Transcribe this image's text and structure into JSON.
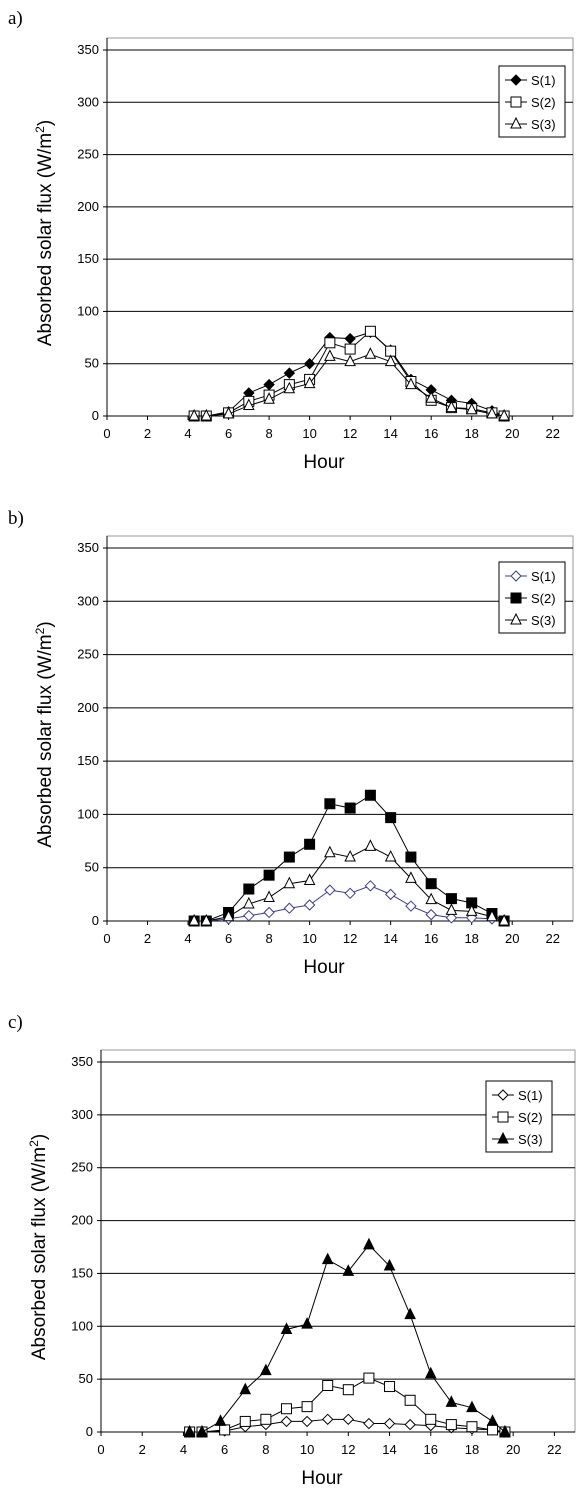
{
  "chart_data": [
    {
      "type": "line",
      "panel_label": "a)",
      "xlabel": "Hour",
      "ylabel": "Absorbed solar flux (W/m",
      "ylabel_sup": "2",
      "ylabel_end": ")",
      "xlim": [
        0,
        23
      ],
      "ylim": [
        0,
        350
      ],
      "xticks": [
        "0",
        "2",
        "4",
        "6",
        "8",
        "10",
        "12",
        "14",
        "16",
        "18",
        "20",
        "22"
      ],
      "yticks": [
        "0",
        "50",
        "100",
        "150",
        "200",
        "250",
        "300",
        "350"
      ],
      "grid": "horizontal",
      "legend_position": "top-right",
      "series": [
        {
          "name": "S(1)",
          "marker": "diamond-filled",
          "color": "#000000",
          "x": [
            4.3,
            4.9,
            6,
            7,
            8,
            9,
            10,
            11,
            12,
            13,
            14,
            15,
            16,
            17,
            18,
            19,
            19.6
          ],
          "y": [
            0,
            0,
            4,
            22,
            30,
            41,
            50,
            75,
            74,
            80,
            63,
            35,
            25,
            15,
            12,
            5,
            0
          ]
        },
        {
          "name": "S(2)",
          "marker": "square-open",
          "color": "#000000",
          "x": [
            4.3,
            4.9,
            6,
            7,
            8,
            9,
            10,
            11,
            12,
            13,
            14,
            15,
            16,
            17,
            18,
            19,
            19.6
          ],
          "y": [
            0,
            0,
            3,
            14,
            20,
            30,
            35,
            70,
            64,
            81,
            62,
            33,
            15,
            8,
            7,
            3,
            0
          ]
        },
        {
          "name": "S(3)",
          "marker": "triangle-open",
          "color": "#000000",
          "x": [
            4.3,
            4.9,
            6,
            7,
            8,
            9,
            10,
            11,
            12,
            13,
            14,
            15,
            16,
            17,
            18,
            19,
            19.6
          ],
          "y": [
            0,
            0,
            2,
            10,
            16,
            26,
            31,
            57,
            52,
            59,
            52,
            30,
            17,
            8,
            6,
            2,
            0
          ]
        }
      ]
    },
    {
      "type": "line",
      "panel_label": "b)",
      "xlabel": "Hour",
      "ylabel": "Absorbed solar flux (W/m",
      "ylabel_sup": "2",
      "ylabel_end": ")",
      "xlim": [
        0,
        23
      ],
      "ylim": [
        0,
        350
      ],
      "xticks": [
        "0",
        "2",
        "4",
        "6",
        "8",
        "10",
        "12",
        "14",
        "16",
        "18",
        "20",
        "22"
      ],
      "yticks": [
        "0",
        "50",
        "100",
        "150",
        "200",
        "250",
        "300",
        "350"
      ],
      "grid": "horizontal",
      "legend_position": "top-right",
      "series": [
        {
          "name": "S(1)",
          "marker": "diamond-open",
          "color": "#3a3a9a",
          "x": [
            4.3,
            4.9,
            6,
            7,
            8,
            9,
            10,
            11,
            12,
            13,
            14,
            15,
            16,
            17,
            18,
            19,
            19.6
          ],
          "y": [
            0,
            0,
            2,
            5,
            8,
            12,
            15,
            29,
            26,
            33,
            25,
            14,
            6,
            3,
            3,
            2,
            0
          ]
        },
        {
          "name": "S(2)",
          "marker": "square-filled",
          "color": "#000000",
          "x": [
            4.3,
            4.9,
            6,
            7,
            8,
            9,
            10,
            11,
            12,
            13,
            14,
            15,
            16,
            17,
            18,
            19,
            19.6
          ],
          "y": [
            0,
            0,
            8,
            30,
            43,
            60,
            72,
            110,
            106,
            118,
            97,
            60,
            35,
            21,
            17,
            7,
            0
          ]
        },
        {
          "name": "S(3)",
          "marker": "triangle-open",
          "color": "#000000",
          "x": [
            4.3,
            4.9,
            6,
            7,
            8,
            9,
            10,
            11,
            12,
            13,
            14,
            15,
            16,
            17,
            18,
            19,
            19.6
          ],
          "y": [
            0,
            0,
            4,
            16,
            22,
            35,
            38,
            64,
            60,
            70,
            60,
            40,
            20,
            10,
            9,
            4,
            0
          ]
        }
      ]
    },
    {
      "type": "line",
      "panel_label": "c)",
      "xlabel": "Hour",
      "ylabel": "Absorbed solar flux (W/m",
      "ylabel_sup": "2",
      "ylabel_end": ")",
      "xlim": [
        0,
        23
      ],
      "ylim": [
        0,
        350
      ],
      "xticks": [
        "0",
        "2",
        "4",
        "6",
        "8",
        "10",
        "12",
        "14",
        "16",
        "18",
        "20",
        "22"
      ],
      "yticks": [
        "0",
        "50",
        "100",
        "150",
        "200",
        "250",
        "300",
        "350"
      ],
      "grid": "horizontal",
      "legend_position": "top-right",
      "series": [
        {
          "name": "S(1)",
          "marker": "diamond-open",
          "color": "#000000",
          "x": [
            4.3,
            4.9,
            6,
            7,
            8,
            9,
            10,
            11,
            12,
            13,
            14,
            15,
            16,
            17,
            18,
            19,
            19.6
          ],
          "y": [
            0,
            0,
            1,
            5,
            7,
            10,
            10,
            12,
            12,
            8,
            8,
            7,
            6,
            4,
            3,
            2,
            0
          ]
        },
        {
          "name": "S(2)",
          "marker": "square-open",
          "color": "#000000",
          "x": [
            4.3,
            4.9,
            6,
            7,
            8,
            9,
            10,
            11,
            12,
            13,
            14,
            15,
            16,
            17,
            18,
            19,
            19.6
          ],
          "y": [
            0,
            0,
            2,
            10,
            12,
            22,
            24,
            44,
            40,
            51,
            43,
            30,
            12,
            7,
            5,
            2,
            0
          ]
        },
        {
          "name": "S(3)",
          "marker": "triangle-filled",
          "color": "#000000",
          "x": [
            4.3,
            4.9,
            5.8,
            7,
            8,
            9,
            10,
            11,
            12,
            13,
            14,
            15,
            16,
            17,
            18,
            19,
            19.6
          ],
          "y": [
            0,
            0,
            10,
            40,
            58,
            97,
            102,
            163,
            152,
            177,
            157,
            111,
            55,
            28,
            23,
            10,
            0
          ]
        }
      ]
    }
  ]
}
